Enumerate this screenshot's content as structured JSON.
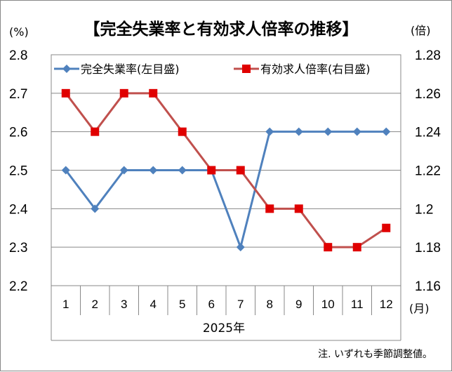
{
  "chart_data": {
    "type": "line",
    "title": "【完全失業率と有効求人倍率の推移】",
    "left_unit": "(%)",
    "right_unit": "(倍)",
    "x_unit": "(月)",
    "xlabel": "2025年",
    "note": "注. いずれも季節調整値。",
    "categories": [
      "1",
      "2",
      "3",
      "4",
      "5",
      "6",
      "7",
      "8",
      "9",
      "10",
      "11",
      "12"
    ],
    "left_axis": {
      "min": 2.2,
      "max": 2.8,
      "ticks": [
        "2.2",
        "2.3",
        "2.4",
        "2.5",
        "2.6",
        "2.7",
        "2.8"
      ]
    },
    "right_axis": {
      "min": 1.16,
      "max": 1.28,
      "ticks": [
        "1.16",
        "1.18",
        "1.2",
        "1.22",
        "1.24",
        "1.26",
        "1.28"
      ]
    },
    "grid": true,
    "legend_position": "top",
    "series": [
      {
        "name": "完全失業率(左目盛)",
        "axis": "left",
        "color": "#4f81bd",
        "marker": "diamond",
        "values": [
          2.5,
          2.4,
          2.5,
          2.5,
          2.5,
          2.5,
          2.3,
          2.6,
          2.6,
          2.6,
          2.6,
          2.6
        ]
      },
      {
        "name": "有効求人倍率(右目盛)",
        "axis": "right",
        "color": "#c0504d",
        "marker": "square",
        "marker_color": "#e00000",
        "values": [
          1.26,
          1.24,
          1.26,
          1.26,
          1.24,
          1.22,
          1.22,
          1.2,
          1.2,
          1.18,
          1.18,
          1.19
        ]
      }
    ]
  }
}
